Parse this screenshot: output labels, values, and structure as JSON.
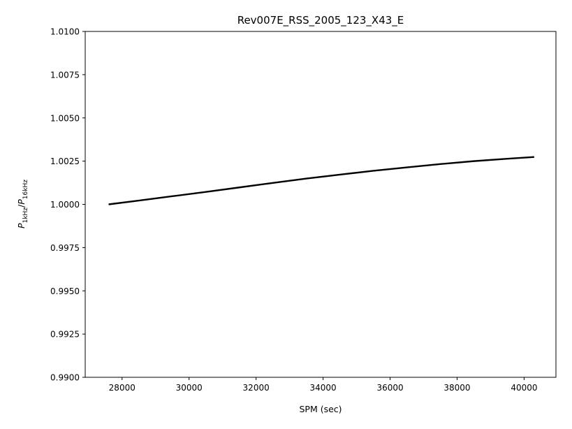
{
  "chart_data": {
    "type": "line",
    "title": "Rev007E_RSS_2005_123_X43_E",
    "xlabel": "SPM (sec)",
    "ylabel": {
      "base": "P",
      "num_sub": "1kHz",
      "den_sub": "16kHz"
    },
    "xlim": [
      26900,
      40950
    ],
    "ylim": [
      0.99,
      1.01
    ],
    "x_ticks": [
      28000,
      30000,
      32000,
      34000,
      36000,
      38000,
      40000
    ],
    "x_tick_labels": [
      "28000",
      "30000",
      "32000",
      "34000",
      "36000",
      "38000",
      "40000"
    ],
    "y_ticks": [
      0.99,
      0.9925,
      0.995,
      0.9975,
      1.0,
      1.0025,
      1.005,
      1.0075,
      1.01
    ],
    "y_tick_labels": [
      "0.9900",
      "0.9925",
      "0.9950",
      "0.9975",
      "1.0000",
      "1.0025",
      "1.0050",
      "1.0075",
      "1.0100"
    ],
    "grid": false,
    "series": [
      {
        "color": "#000000",
        "x": [
          27600,
          28500,
          29500,
          30500,
          31500,
          32500,
          33500,
          34500,
          35500,
          36500,
          37500,
          38500,
          39500,
          40300
        ],
        "y": [
          1.0,
          1.00022,
          1.00047,
          1.00072,
          1.00098,
          1.00124,
          1.00149,
          1.00172,
          1.00194,
          1.00214,
          1.00233,
          1.0025,
          1.00264,
          1.00274
        ]
      }
    ]
  }
}
